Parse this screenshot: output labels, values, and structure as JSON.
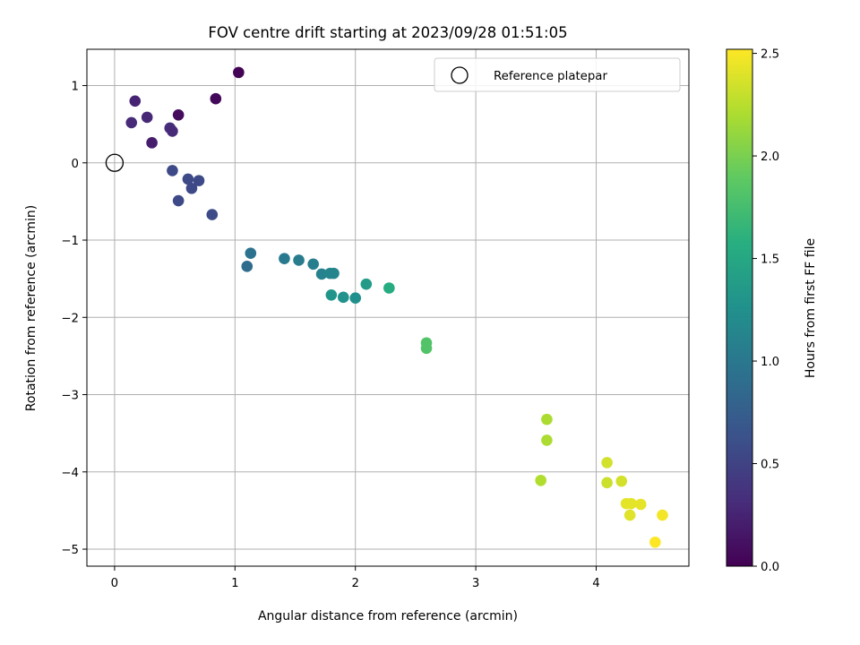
{
  "chart_data": {
    "type": "scatter",
    "title": "FOV centre drift starting at 2023/09/28 01:51:05",
    "xlabel": "Angular distance from reference (arcmin)",
    "ylabel": "Rotation from reference (arcmin)",
    "xlim": [
      -0.23,
      4.77
    ],
    "ylim": [
      -5.22,
      1.47
    ],
    "x_ticks": [
      0,
      1,
      2,
      3,
      4
    ],
    "x_tick_labels": [
      "0",
      "1",
      "2",
      "3",
      "4"
    ],
    "y_ticks": [
      1,
      0,
      -1,
      -2,
      -3,
      -4,
      -5
    ],
    "y_tick_labels": [
      "1",
      "0",
      "−1",
      "−2",
      "−3",
      "−4",
      "−5"
    ],
    "grid": true,
    "legend": {
      "placement": "top-right",
      "entries": [
        "Reference platepar"
      ]
    },
    "reference": {
      "x": 0,
      "y": 0,
      "label": "Reference platepar"
    },
    "colorbar": {
      "label": "Hours from first FF file",
      "range": [
        0,
        2.52
      ],
      "ticks": [
        0.0,
        0.5,
        1.0,
        1.5,
        2.0,
        2.5
      ],
      "tick_labels": [
        "0.0",
        "0.5",
        "1.0",
        "1.5",
        "2.0",
        "2.5"
      ],
      "colormap": "viridis"
    },
    "points": [
      {
        "x": 1.03,
        "y": 1.17,
        "hours": 0.02
      },
      {
        "x": 0.84,
        "y": 0.83,
        "hours": 0.05
      },
      {
        "x": 0.53,
        "y": 0.62,
        "hours": 0.08
      },
      {
        "x": 0.17,
        "y": 0.8,
        "hours": 0.25
      },
      {
        "x": 0.27,
        "y": 0.59,
        "hours": 0.28
      },
      {
        "x": 0.14,
        "y": 0.52,
        "hours": 0.3
      },
      {
        "x": 0.46,
        "y": 0.45,
        "hours": 0.32
      },
      {
        "x": 0.48,
        "y": 0.41,
        "hours": 0.3
      },
      {
        "x": 0.31,
        "y": 0.26,
        "hours": 0.2
      },
      {
        "x": 0.48,
        "y": -0.1,
        "hours": 0.55
      },
      {
        "x": 0.61,
        "y": -0.21,
        "hours": 0.55
      },
      {
        "x": 0.7,
        "y": -0.23,
        "hours": 0.55
      },
      {
        "x": 0.64,
        "y": -0.33,
        "hours": 0.55
      },
      {
        "x": 0.53,
        "y": -0.49,
        "hours": 0.55
      },
      {
        "x": 0.81,
        "y": -0.67,
        "hours": 0.58
      },
      {
        "x": 1.13,
        "y": -1.17,
        "hours": 0.95
      },
      {
        "x": 1.1,
        "y": -1.34,
        "hours": 0.88
      },
      {
        "x": 1.41,
        "y": -1.24,
        "hours": 1.02
      },
      {
        "x": 1.53,
        "y": -1.26,
        "hours": 1.05
      },
      {
        "x": 1.65,
        "y": -1.31,
        "hours": 1.08
      },
      {
        "x": 1.72,
        "y": -1.44,
        "hours": 1.12
      },
      {
        "x": 1.79,
        "y": -1.43,
        "hours": 1.13
      },
      {
        "x": 1.82,
        "y": -1.43,
        "hours": 1.14
      },
      {
        "x": 1.8,
        "y": -1.71,
        "hours": 1.3
      },
      {
        "x": 1.9,
        "y": -1.74,
        "hours": 1.27
      },
      {
        "x": 2.0,
        "y": -1.75,
        "hours": 1.25
      },
      {
        "x": 2.09,
        "y": -1.57,
        "hours": 1.37
      },
      {
        "x": 2.28,
        "y": -1.62,
        "hours": 1.55
      },
      {
        "x": 2.59,
        "y": -2.33,
        "hours": 1.82
      },
      {
        "x": 2.59,
        "y": -2.4,
        "hours": 1.82
      },
      {
        "x": 3.59,
        "y": -3.32,
        "hours": 2.2
      },
      {
        "x": 3.59,
        "y": -3.59,
        "hours": 2.2
      },
      {
        "x": 3.54,
        "y": -4.11,
        "hours": 2.22
      },
      {
        "x": 4.09,
        "y": -3.88,
        "hours": 2.35
      },
      {
        "x": 4.09,
        "y": -4.14,
        "hours": 2.32
      },
      {
        "x": 4.21,
        "y": -4.12,
        "hours": 2.36
      },
      {
        "x": 4.25,
        "y": -4.41,
        "hours": 2.42
      },
      {
        "x": 4.29,
        "y": -4.41,
        "hours": 2.42
      },
      {
        "x": 4.37,
        "y": -4.42,
        "hours": 2.43
      },
      {
        "x": 4.28,
        "y": -4.56,
        "hours": 2.4
      },
      {
        "x": 4.55,
        "y": -4.56,
        "hours": 2.48
      },
      {
        "x": 4.49,
        "y": -4.91,
        "hours": 2.52
      }
    ]
  }
}
